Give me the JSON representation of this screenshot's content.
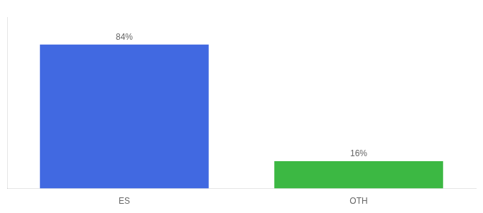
{
  "chart_data": {
    "type": "bar",
    "categories": [
      "ES",
      "OTH"
    ],
    "values": [
      84,
      16
    ],
    "value_labels": [
      "84%",
      "16%"
    ],
    "colors": [
      "#4169e1",
      "#3cb843"
    ],
    "data_labels": true,
    "ylim": [
      0,
      100
    ],
    "tick_labels": "x",
    "grid": false
  }
}
